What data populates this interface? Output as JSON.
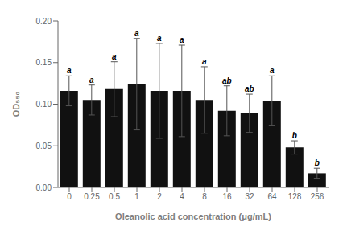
{
  "chart_data": {
    "type": "bar",
    "categories": [
      "0",
      "0.25",
      "0.5",
      "1",
      "2",
      "4",
      "8",
      "16",
      "32",
      "64",
      "128",
      "256"
    ],
    "values": [
      0.116,
      0.105,
      0.118,
      0.124,
      0.116,
      0.116,
      0.105,
      0.092,
      0.089,
      0.104,
      0.048,
      0.017
    ],
    "error_bars": [
      0.018,
      0.018,
      0.033,
      0.055,
      0.057,
      0.055,
      0.04,
      0.03,
      0.023,
      0.03,
      0.008,
      0.006
    ],
    "annotations": [
      "a",
      "a",
      "a",
      "a",
      "a",
      "a",
      "a",
      "ab",
      "ab",
      "a",
      "b",
      "b"
    ],
    "color": "#111111",
    "xlabel": "Oleanolic acid concentration (μg/mL)",
    "ylabel": "OD₅₅₀",
    "ylim": [
      0.0,
      0.2
    ],
    "yticks": [
      {
        "value": 0,
        "label": "0.00"
      },
      0.05,
      {
        "value": 0.1,
        "label": "0.10"
      },
      0.15,
      {
        "value": 0.2,
        "label": "0.20"
      }
    ],
    "grid": false
  }
}
